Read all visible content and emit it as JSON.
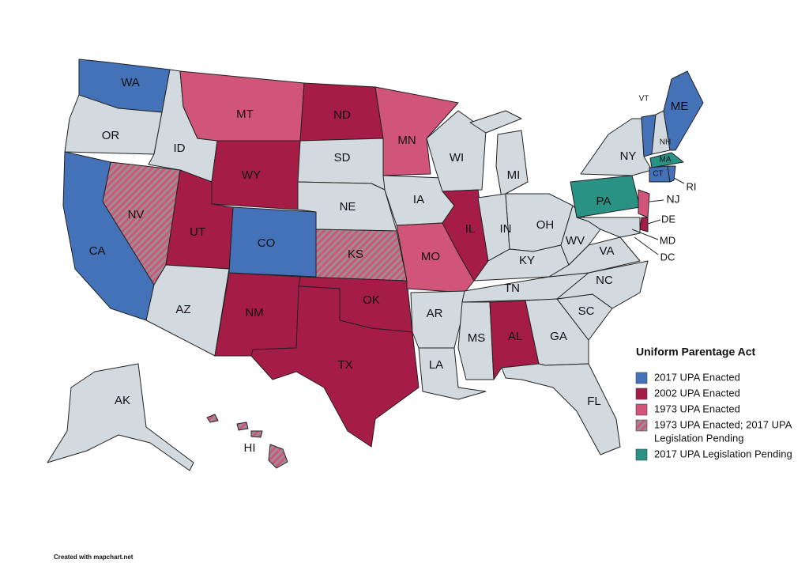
{
  "map": {
    "legend": {
      "title": "Uniform Parentage Act",
      "items": [
        {
          "lines": [
            "2017 UPA Enacted"
          ],
          "color": "#4472b8"
        },
        {
          "lines": [
            "2002 UPA Enacted"
          ],
          "color": "#a51c46"
        },
        {
          "lines": [
            "1973 UPA Enacted"
          ],
          "color": "#d05579"
        },
        {
          "lines": [
            "1973 UPA Enacted; 2017 UPA",
            "Legislation Pending"
          ],
          "color": "#d05579",
          "hatch": "#9a8f95"
        },
        {
          "lines": [
            "2017 UPA Legislation Pending"
          ],
          "color": "#2a9185"
        }
      ]
    },
    "no_status_color": "#d2dadf",
    "states": [
      {
        "label": "WA",
        "status": 0
      },
      {
        "label": "OR",
        "status": null
      },
      {
        "label": "CA",
        "status": 0
      },
      {
        "label": "NV",
        "status": 3
      },
      {
        "label": "ID",
        "status": null
      },
      {
        "label": "MT",
        "status": 2
      },
      {
        "label": "WY",
        "status": 1
      },
      {
        "label": "UT",
        "status": 1
      },
      {
        "label": "CO",
        "status": 0
      },
      {
        "label": "AZ",
        "status": null
      },
      {
        "label": "NM",
        "status": 1
      },
      {
        "label": "ND",
        "status": 1
      },
      {
        "label": "SD",
        "status": null
      },
      {
        "label": "NE",
        "status": null
      },
      {
        "label": "KS",
        "status": 3
      },
      {
        "label": "OK",
        "status": 1
      },
      {
        "label": "TX",
        "status": 1
      },
      {
        "label": "MN",
        "status": 2
      },
      {
        "label": "IA",
        "status": null
      },
      {
        "label": "MO",
        "status": 2
      },
      {
        "label": "AR",
        "status": null
      },
      {
        "label": "LA",
        "status": null
      },
      {
        "label": "WI",
        "status": null
      },
      {
        "label": "IL",
        "status": 1
      },
      {
        "label": "MI",
        "status": null
      },
      {
        "label": "IN",
        "status": null
      },
      {
        "label": "OH",
        "status": null
      },
      {
        "label": "KY",
        "status": null
      },
      {
        "label": "TN",
        "status": null
      },
      {
        "label": "MS",
        "status": null
      },
      {
        "label": "AL",
        "status": 1
      },
      {
        "label": "GA",
        "status": null
      },
      {
        "label": "FL",
        "status": null
      },
      {
        "label": "SC",
        "status": null
      },
      {
        "label": "NC",
        "status": null
      },
      {
        "label": "VA",
        "status": null
      },
      {
        "label": "WV",
        "status": null
      },
      {
        "label": "PA",
        "status": 4
      },
      {
        "label": "NY",
        "status": null
      },
      {
        "label": "NJ",
        "status": 2
      },
      {
        "label": "DE",
        "status": 1
      },
      {
        "label": "MD",
        "status": null
      },
      {
        "label": "DC",
        "status": null
      },
      {
        "label": "VT",
        "status": 0
      },
      {
        "label": "NH",
        "status": null
      },
      {
        "label": "ME",
        "status": 0
      },
      {
        "label": "MA",
        "status": 4
      },
      {
        "label": "CT",
        "status": 0
      },
      {
        "label": "RI",
        "status": 0
      },
      {
        "label": "AK",
        "status": null
      },
      {
        "label": "HI",
        "status": 3
      }
    ],
    "footer": "Created with mapchart.net"
  }
}
